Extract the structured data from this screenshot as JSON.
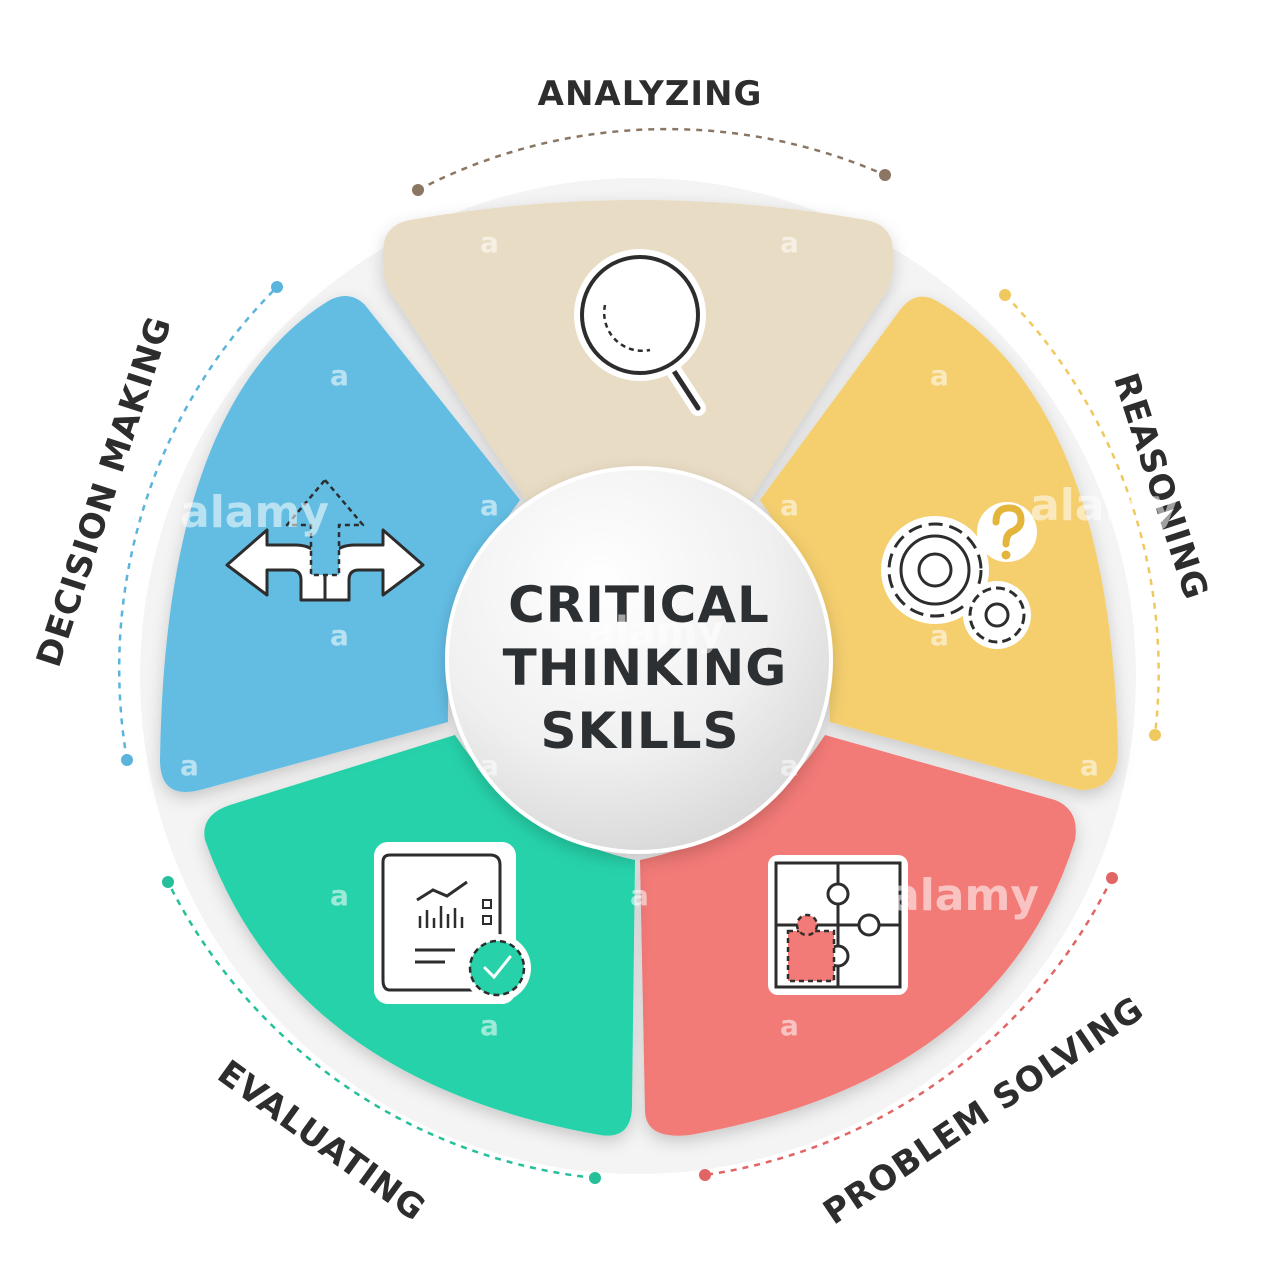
{
  "center": {
    "title_lines": [
      "CRITICAL",
      "THINKING",
      "SKILLS"
    ]
  },
  "segments": [
    {
      "id": "analyzing",
      "label": "ANALYZING",
      "color": "#e9dcc4",
      "accent": "#8a7663",
      "icon": "magnifier-icon"
    },
    {
      "id": "reasoning",
      "label": "REASONING",
      "color": "#f5cf6e",
      "accent": "#efc85e",
      "icon": "gears-question-icon"
    },
    {
      "id": "problem-solving",
      "label": "PROBLEM SOLVING",
      "color": "#f27a77",
      "accent": "#e06564",
      "icon": "puzzle-icon"
    },
    {
      "id": "evaluating",
      "label": "EVALUATING",
      "color": "#27d2aa",
      "accent": "#25c09a",
      "icon": "report-check-icon"
    },
    {
      "id": "decision-making",
      "label": "DECISION MAKING",
      "color": "#63bde3",
      "accent": "#5ab4dc",
      "icon": "arrows-split-icon"
    }
  ],
  "watermark": {
    "brand": "alamy",
    "mark": "a"
  }
}
